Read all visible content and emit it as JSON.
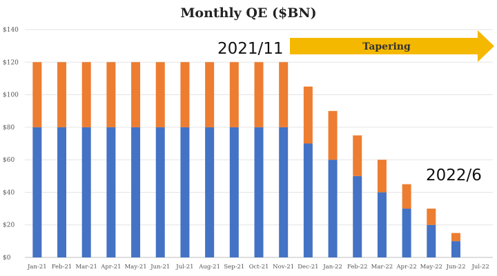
{
  "chart_data": {
    "type": "bar",
    "title": "Monthly QE ($BN)",
    "categories": [
      "Jan-21",
      "Feb-21",
      "Mar-21",
      "Apr-21",
      "May-21",
      "Jun-21",
      "Jul-21",
      "Aug-21",
      "Sep-21",
      "Oct-21",
      "Nov-21",
      "Dec-21",
      "Jan-22",
      "Feb-22",
      "Mar-22",
      "Apr-22",
      "May-22",
      "Jun-22",
      "Jul-22"
    ],
    "stacked": true,
    "series": [
      {
        "values": [
          80,
          80,
          80,
          80,
          80,
          80,
          80,
          80,
          80,
          80,
          80,
          70,
          60,
          50,
          40,
          30,
          20,
          10,
          0
        ],
        "color": "#4472c4"
      },
      {
        "values": [
          40,
          40,
          40,
          40,
          40,
          40,
          40,
          40,
          40,
          40,
          40,
          35,
          30,
          25,
          20,
          15,
          10,
          5,
          0
        ],
        "color": "#ed7d31"
      }
    ],
    "ylim": [
      0,
      140
    ],
    "y_ticks": [
      "$0",
      "$20",
      "$40",
      "$60",
      "$80",
      "$100",
      "$120",
      "$140"
    ],
    "grid": true,
    "annotations": [
      {
        "text": "2021/11",
        "target_category": "Nov-21"
      },
      {
        "text": "2022/6",
        "target_category": "Jun-22"
      }
    ],
    "arrow": {
      "label": "Tapering",
      "color": "#f5b800"
    }
  }
}
